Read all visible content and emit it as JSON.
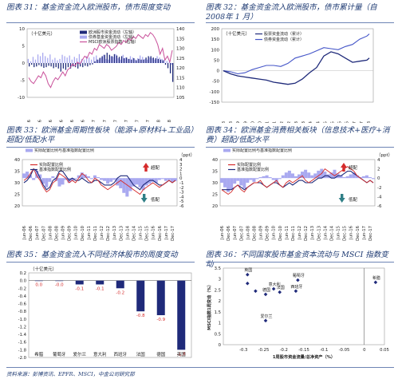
{
  "footer": "资料来源：彭博资讯、EPFR、MSCI，中金公司研究部",
  "colors": {
    "navy": "#1f2a7a",
    "blue": "#4455c8",
    "red": "#d52b2b",
    "black": "#111111",
    "lavender": "#a9a9f0",
    "pink": "#c9509a",
    "green": "#2f7f86",
    "gray": "#8b8b8b"
  },
  "chart_data": [
    {
      "id": "c31",
      "type": "bar",
      "title": "图表 31：基金资金流入欧洲股市，债市周度变动",
      "unit_label": "（十亿美元）",
      "legend": [
        "欧洲股市资金流动（左轴）",
        "债券基金资金流动（左轴）",
        "MSCI欧洲股票指数（右轴）"
      ],
      "x_ticks": [
        "Jan-16",
        "Mar-16",
        "May-16",
        "Jul-16",
        "Sep-16",
        "Nov-16",
        "Jan-17",
        "Mar-17",
        "May-17",
        "Jul-17",
        "Sep-17",
        "Nov-17",
        "Jan-18",
        "Mar-18"
      ],
      "ylim_left": [
        -10,
        10
      ],
      "left_ticks": [
        -10,
        -5,
        0,
        5,
        10
      ],
      "ylim_right": [
        105,
        140
      ],
      "right_ticks": [
        105,
        110,
        115,
        120,
        125,
        130,
        135,
        140
      ],
      "x": [
        0,
        2,
        4,
        6,
        8,
        10,
        12,
        14,
        16,
        18,
        20,
        22,
        24,
        26,
        28,
        30,
        32,
        34,
        36,
        38,
        40,
        42,
        44,
        46,
        48,
        50,
        52,
        54,
        56,
        58,
        60,
        62,
        64,
        66,
        68,
        70,
        72,
        74,
        76,
        78,
        80,
        82,
        84,
        86,
        88,
        90,
        92,
        94,
        96,
        98,
        100,
        102,
        104,
        106,
        108,
        110,
        112,
        114,
        116,
        118
      ],
      "equity_flow": [
        -1.0,
        -0.5,
        -1.2,
        -1.0,
        -0.6,
        -1.0,
        -1.4,
        -1.2,
        -0.8,
        -1.0,
        -1.5,
        -1.2,
        -1.6,
        -2.5,
        -1.6,
        -2.0,
        -1.2,
        -1.6,
        -1.0,
        -1.2,
        -1.6,
        -1.0,
        -1.2,
        -0.8,
        -1.0,
        -0.6,
        -0.4,
        0.5,
        1.0,
        1.5,
        2.0,
        2.4,
        3.0,
        2.4,
        2.0,
        2.6,
        2.2,
        1.8,
        2.0,
        1.4,
        1.6,
        1.2,
        1.0,
        1.4,
        0.8,
        1.2,
        1.0,
        1.0,
        1.6,
        2.0,
        2.0,
        1.6,
        1.4,
        1.2,
        1.0,
        0.8,
        -0.5,
        -1.5,
        -3.0,
        -5.5
      ],
      "bond_flow": [
        1.2,
        0.5,
        1.8,
        1.0,
        2.5,
        2.0,
        3.0,
        2.0,
        1.5,
        2.5,
        1.0,
        1.5,
        0.8,
        1.2,
        2.4,
        2.0,
        1.6,
        2.2,
        1.0,
        1.8,
        1.4,
        2.6,
        1.2,
        1.0,
        2.0,
        1.6,
        1.0,
        1.8,
        2.2,
        1.0,
        1.6,
        2.4,
        1.2,
        1.0,
        2.0,
        1.8,
        2.6,
        1.4,
        1.0,
        2.4,
        1.6,
        1.2,
        2.0,
        1.6,
        1.0,
        1.4,
        2.2,
        1.8,
        1.2,
        1.0,
        1.6,
        1.4,
        1.0,
        2.0,
        1.6,
        1.2,
        1.0,
        0.6,
        0.4,
        -0.5
      ],
      "msci": [
        115,
        113,
        112,
        114,
        116,
        115,
        118,
        116,
        112,
        110,
        113,
        115,
        114,
        116,
        118,
        116,
        119,
        120,
        122,
        121,
        123,
        122,
        124,
        126,
        125,
        128,
        127,
        130,
        129,
        132,
        131,
        130,
        132,
        131,
        129,
        130,
        131,
        133,
        132,
        134,
        133,
        135,
        134,
        136,
        135,
        137,
        136,
        135,
        137,
        136,
        138,
        137,
        135,
        132,
        127,
        130,
        124,
        126,
        123,
        129
      ]
    },
    {
      "id": "c32",
      "type": "line",
      "title": "图表 32：基金资金流入欧洲股市，债市累计量（自 2008年 1 月）",
      "unit_label": "（十亿美元）",
      "legend": [
        "股票资金流动（累计）",
        "债券资金流动（累计）"
      ],
      "x_ticks": [
        "Jan-08",
        "Jul-08",
        "Jan-09",
        "Jul-09",
        "Jan-10",
        "Jul-10",
        "Jan-11",
        "Jul-11",
        "Jan-12",
        "Jul-12",
        "Jan-13",
        "Jul-13",
        "Jan-14",
        "Jul-14",
        "Jan-15",
        "Jul-15",
        "Jan-16",
        "Jul-16",
        "Jan-17",
        "Jul-17",
        "Jan-18"
      ],
      "ylim": [
        -150,
        200
      ],
      "y_ticks": [
        -150,
        -100,
        -50,
        0,
        50,
        100,
        150,
        200
      ],
      "x": [
        0,
        6,
        12,
        18,
        24,
        30,
        36,
        42,
        48,
        54,
        60,
        66,
        72,
        78,
        84,
        90,
        96,
        102,
        108,
        114,
        120,
        122
      ],
      "equity": [
        0,
        -15,
        -25,
        -30,
        -35,
        -40,
        -45,
        -55,
        -60,
        -65,
        -60,
        -40,
        -10,
        15,
        70,
        90,
        80,
        60,
        40,
        45,
        50,
        60
      ],
      "bonds": [
        0,
        -5,
        -15,
        -10,
        5,
        15,
        25,
        25,
        20,
        35,
        60,
        70,
        80,
        95,
        110,
        105,
        100,
        115,
        125,
        150,
        165,
        175
      ]
    },
    {
      "id": "c33",
      "type": "line",
      "title": "图表 33：欧洲基金周期性板块（能源+原材料+工业品）超配/低配水平",
      "legend": [
        "实际配置比例与基准指数配置比例",
        "实际配置比例",
        "基准指数配置比例"
      ],
      "right_unit": "（ppt）",
      "x_ticks": [
        "Jun-06",
        "Dec-06",
        "Jun-07",
        "Dec-07",
        "Jun-08",
        "Dec-08",
        "Jun-09",
        "Dec-09",
        "Jun-10",
        "Dec-10",
        "Jun-11",
        "Dec-11",
        "Jun-12",
        "Dec-12",
        "Jun-13",
        "Dec-13",
        "Jun-14",
        "Dec-14",
        "Jun-15",
        "Dec-15",
        "Jun-16",
        "Dec-16",
        "Jun-17",
        "Dec-17"
      ],
      "ylim_left": [
        20,
        40
      ],
      "left_ticks": [
        20,
        25,
        30,
        35,
        40
      ],
      "ylim_right": [
        -6,
        4
      ],
      "right_ticks": [
        -6,
        -5,
        -4,
        -3,
        -2,
        -1,
        0,
        1,
        2,
        3,
        4
      ],
      "annotations": [
        "超配",
        "低配"
      ],
      "x": [
        0,
        3,
        6,
        9,
        12,
        15,
        18,
        21,
        24,
        27,
        30,
        33,
        36,
        39,
        42,
        45,
        48,
        51,
        54,
        57,
        60,
        63,
        66,
        69,
        72,
        75,
        78,
        81,
        84,
        87,
        90,
        93,
        96,
        99,
        102,
        105,
        108,
        111,
        114,
        117,
        120,
        123,
        126,
        129,
        132,
        135,
        138,
        141
      ],
      "active": [
        1.0,
        1.4,
        0.6,
        -0.4,
        1.6,
        0.8,
        -1.2,
        -2.0,
        -0.8,
        0.4,
        -0.6,
        -1.8,
        -1.4,
        -0.4,
        -1.0,
        -0.6,
        -0.2,
        0.6,
        1.2,
        0.8,
        0.4,
        -0.2,
        0.6,
        0.2,
        -0.4,
        -0.6,
        -1.2,
        -0.8,
        -0.4,
        -1.6,
        -2.2,
        -3.2,
        -4.0,
        -2.8,
        -1.8,
        -1.4,
        -2.0,
        -2.6,
        -1.6,
        -1.2,
        -0.8,
        -1.0,
        -0.4,
        -0.2,
        -0.6,
        -0.4,
        -0.8,
        -0.6
      ],
      "actual": [
        31,
        32,
        34,
        36,
        33,
        31,
        28,
        26,
        27,
        30,
        31,
        34,
        33,
        32,
        30,
        31,
        30,
        32,
        34,
        33,
        31,
        30,
        32,
        31,
        29,
        28,
        27,
        28,
        29,
        30,
        31,
        30,
        29,
        28,
        27,
        26,
        25,
        27,
        28,
        29,
        30,
        29,
        28,
        29,
        30,
        31,
        30,
        31
      ],
      "benchmark": [
        30,
        31,
        33,
        36,
        35,
        32,
        29,
        27,
        28,
        31,
        32,
        35,
        35,
        33,
        31,
        32,
        31,
        31,
        32,
        31,
        30,
        30,
        31,
        31,
        30,
        29,
        29,
        29,
        30,
        32,
        33,
        33,
        33,
        31,
        29,
        28,
        27,
        29,
        30,
        31,
        31,
        30,
        29,
        29,
        30,
        31,
        30,
        31
      ]
    },
    {
      "id": "c34",
      "type": "line",
      "title": "图表 34：欧洲基金消费相关板块（信息技术+医疗+消费）超配/低配水平",
      "legend": [
        "实际配置比例与基准指数配置比例",
        "实际配置比例",
        "基准指数配置比例"
      ],
      "right_unit": "（ppt）",
      "x_ticks": [
        "Jun-06",
        "Dec-06",
        "Jun-07",
        "Dec-07",
        "Jun-08",
        "Dec-08",
        "Jun-09",
        "Dec-09",
        "Jun-10",
        "Dec-10",
        "Jun-11",
        "Dec-11",
        "Jun-12",
        "Dec-12",
        "Jun-13",
        "Dec-13",
        "Jun-14",
        "Dec-14",
        "Jun-15",
        "Dec-15",
        "Jun-16",
        "Dec-16",
        "Jun-17",
        "Dec-17"
      ],
      "ylim_left": [
        20,
        40
      ],
      "left_ticks": [
        20,
        25,
        30,
        35,
        40
      ],
      "ylim_right": [
        -6,
        4
      ],
      "right_ticks": [
        -6,
        -4,
        -2,
        0,
        2,
        4
      ],
      "annotations": [
        "超配",
        "低配"
      ],
      "x": [
        0,
        3,
        6,
        9,
        12,
        15,
        18,
        21,
        24,
        27,
        30,
        33,
        36,
        39,
        42,
        45,
        48,
        51,
        54,
        57,
        60,
        63,
        66,
        69,
        72,
        75,
        78,
        81,
        84,
        87,
        90,
        93,
        96,
        99,
        102,
        105,
        108,
        111,
        114,
        117,
        120,
        123,
        126,
        129,
        132,
        135,
        138,
        141
      ],
      "active": [
        -1.0,
        -2.0,
        -3.0,
        -2.4,
        -1.2,
        -0.6,
        -1.6,
        -2.2,
        -1.0,
        -0.4,
        -0.8,
        -0.2,
        0.2,
        0.4,
        0.6,
        0.2,
        -0.4,
        -0.8,
        -0.2,
        0.6,
        1.2,
        1.6,
        1.0,
        0.4,
        0.8,
        1.4,
        1.8,
        1.2,
        0.6,
        1.0,
        1.6,
        2.0,
        1.4,
        0.8,
        1.2,
        1.8,
        1.0,
        0.6,
        0.2,
        0.4,
        0.8,
        1.2,
        0.6,
        0.2,
        0.4,
        0.6,
        0.2,
        -0.2
      ],
      "actual": [
        27,
        26,
        25,
        26,
        28,
        29,
        27,
        26,
        28,
        29,
        30,
        30,
        31,
        29,
        28,
        29,
        30,
        31,
        29,
        28,
        30,
        31,
        30,
        31,
        32,
        33,
        31,
        30,
        31,
        32,
        33,
        34,
        36,
        35,
        34,
        33,
        34,
        35,
        36,
        37,
        36,
        35,
        33,
        32,
        31,
        30,
        31,
        30
      ],
      "benchmark": [
        27,
        27,
        27,
        27,
        28,
        29,
        28,
        27,
        28,
        29,
        30,
        30,
        30,
        29,
        28,
        29,
        30,
        30,
        29,
        28,
        29,
        30,
        29,
        30,
        31,
        31,
        30,
        30,
        30,
        31,
        32,
        32,
        33,
        33,
        32,
        32,
        33,
        33,
        34,
        35,
        35,
        34,
        33,
        32,
        31,
        30,
        31,
        30
      ]
    },
    {
      "id": "c35",
      "type": "bar",
      "title": "图表 35：基金资金流入不同经济体股市的周度变动",
      "unit_label": "（十亿美元）",
      "categories": [
        "希腊",
        "葡萄牙",
        "爱尔兰",
        "意大利",
        "西班牙",
        "法国",
        "德国",
        "英国"
      ],
      "values": [
        0.0,
        -0.0,
        -0.1,
        -0.1,
        -0.2,
        -0.8,
        -0.9,
        -1.8
      ],
      "labels": [
        "0.0",
        "-0.0",
        "-0.1",
        "-0.1",
        "-0.2",
        "-0.8",
        "-0.9",
        "-1.8"
      ],
      "ylim": [
        -2.0,
        0.2
      ],
      "y_ticks": [
        -2.0,
        -1.8,
        -1.6,
        -1.4,
        -1.2,
        -1.0,
        -0.8,
        -0.6,
        -0.4,
        -0.2,
        0.0,
        0.2
      ],
      "y_tick_labels": [
        "-2.0",
        "-1.8",
        "-1.6",
        "-1.4",
        "-1.2",
        "-1.0",
        "-0.8",
        "-0.6",
        "-0.4",
        "-0.2",
        "0.0",
        "0.2"
      ]
    },
    {
      "id": "c36",
      "type": "scatter",
      "title": "图表 36：不同国家股市基金资本流动与 MSCI 指数变动",
      "xlabel": "1周股市资金流量/总净资产（%）",
      "ylabel": "MSCI指数1周变动（%）",
      "xlim": [
        -0.35,
        0.05
      ],
      "ylim": [
        0,
        3.5
      ],
      "x_ticks": [
        -0.3,
        -0.25,
        -0.2,
        -0.15,
        -0.1,
        -0.05,
        0,
        0.05
      ],
      "x_tick_labels": [
        "-0.3",
        "-0.25",
        "-0.2",
        "-0.15",
        "-0.1",
        "-0.05",
        "0",
        "0.05"
      ],
      "y_ticks": [
        0,
        0.5,
        1,
        1.5,
        2,
        2.5,
        3,
        3.5
      ],
      "y_tick_labels": [
        "0",
        "0.5",
        "1",
        "1.5",
        "2",
        "2.5",
        "3",
        "3.5"
      ],
      "points": [
        {
          "label": "英国",
          "x": -0.29,
          "y": 3.2
        },
        {
          "label": "",
          "x": -0.29,
          "y": 2.8
        },
        {
          "label": "",
          "x": -0.27,
          "y": 2.45
        },
        {
          "label": "德国",
          "x": -0.245,
          "y": 2.3
        },
        {
          "label": "意大利",
          "x": -0.225,
          "y": 2.55
        },
        {
          "label": "法国",
          "x": -0.21,
          "y": 2.4
        },
        {
          "label": "葡萄牙",
          "x": -0.165,
          "y": 2.95
        },
        {
          "label": "西班牙",
          "x": -0.17,
          "y": 2.45
        },
        {
          "label": "爱尔兰",
          "x": -0.245,
          "y": 1.1
        },
        {
          "label": "希腊",
          "x": 0.028,
          "y": 2.85
        }
      ]
    }
  ]
}
